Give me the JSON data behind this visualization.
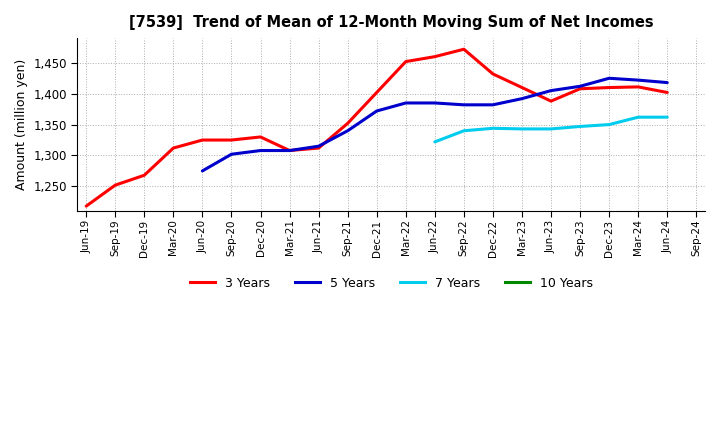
{
  "title": "[7539]  Trend of Mean of 12-Month Moving Sum of Net Incomes",
  "ylabel": "Amount (million yen)",
  "background_color": "#ffffff",
  "plot_bg_color": "#ffffff",
  "grid_color": "#999999",
  "ylim": [
    1210,
    1490
  ],
  "yticks": [
    1250,
    1300,
    1350,
    1400,
    1450
  ],
  "x_labels": [
    "Jun-19",
    "Sep-19",
    "Dec-19",
    "Mar-20",
    "Jun-20",
    "Sep-20",
    "Dec-20",
    "Mar-21",
    "Jun-21",
    "Sep-21",
    "Dec-21",
    "Mar-22",
    "Jun-22",
    "Sep-22",
    "Dec-22",
    "Mar-23",
    "Jun-23",
    "Sep-23",
    "Dec-23",
    "Mar-24",
    "Jun-24",
    "Sep-24"
  ],
  "series": {
    "3 Years": {
      "color": "#ff0000",
      "data_x": [
        0,
        1,
        2,
        3,
        4,
        5,
        6,
        7,
        8,
        9,
        10,
        11,
        12,
        13,
        14,
        15,
        16,
        17,
        18,
        19,
        20
      ],
      "data_y": [
        1218,
        1252,
        1268,
        1312,
        1325,
        1325,
        1330,
        1308,
        1312,
        1352,
        1402,
        1452,
        1460,
        1472,
        1432,
        1410,
        1388,
        1408,
        1410,
        1411,
        1402
      ]
    },
    "5 Years": {
      "color": "#0000cc",
      "data_x": [
        4,
        5,
        6,
        7,
        8,
        9,
        10,
        11,
        12,
        13,
        14,
        15,
        16,
        17,
        18,
        19,
        20
      ],
      "data_y": [
        1275,
        1302,
        1308,
        1308,
        1315,
        1340,
        1372,
        1385,
        1385,
        1382,
        1382,
        1392,
        1405,
        1412,
        1425,
        1422,
        1418
      ]
    },
    "7 Years": {
      "color": "#00ccee",
      "data_x": [
        12,
        13,
        14,
        15,
        16,
        17,
        18,
        19,
        20
      ],
      "data_y": [
        1322,
        1340,
        1344,
        1343,
        1343,
        1347,
        1350,
        1362,
        1362
      ]
    },
    "10 Years": {
      "color": "#008800",
      "data_x": [],
      "data_y": []
    }
  },
  "legend_labels": [
    "3 Years",
    "5 Years",
    "7 Years",
    "10 Years"
  ],
  "legend_colors": [
    "#ff0000",
    "#0000cc",
    "#00ccee",
    "#008800"
  ]
}
